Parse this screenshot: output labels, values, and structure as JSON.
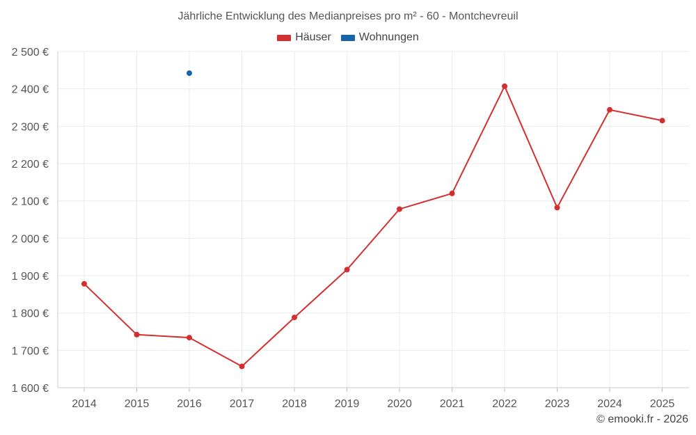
{
  "chart_data": {
    "type": "line",
    "title": "Jährliche Entwicklung des Medianpreises pro m² - 60 - Montchevreuil",
    "categories": [
      "2014",
      "2015",
      "2016",
      "2017",
      "2018",
      "2019",
      "2020",
      "2021",
      "2022",
      "2023",
      "2024",
      "2025"
    ],
    "series": [
      {
        "name": "Häuser",
        "color": "#d32f2f",
        "values": [
          1878,
          1742,
          1734,
          1657,
          1788,
          1916,
          2078,
          2120,
          2407,
          2082,
          2344,
          2315
        ]
      },
      {
        "name": "Wohnungen",
        "color": "#1565a8",
        "values": [
          null,
          null,
          2442,
          null,
          null,
          null,
          null,
          null,
          null,
          null,
          null,
          null
        ]
      }
    ],
    "ylim": [
      1600,
      2500
    ],
    "yticks": [
      1600,
      1700,
      1800,
      1900,
      2000,
      2100,
      2200,
      2300,
      2400,
      2500
    ],
    "ytick_labels": [
      "1 600 €",
      "1 700 €",
      "1 800 €",
      "1 900 €",
      "2 000 €",
      "2 100 €",
      "2 200 €",
      "2 300 €",
      "2 400 €",
      "2 500 €"
    ],
    "xlabel": "",
    "ylabel": "",
    "legend": "top-center",
    "grid": true
  },
  "credit": "© emooki.fr - 2026"
}
